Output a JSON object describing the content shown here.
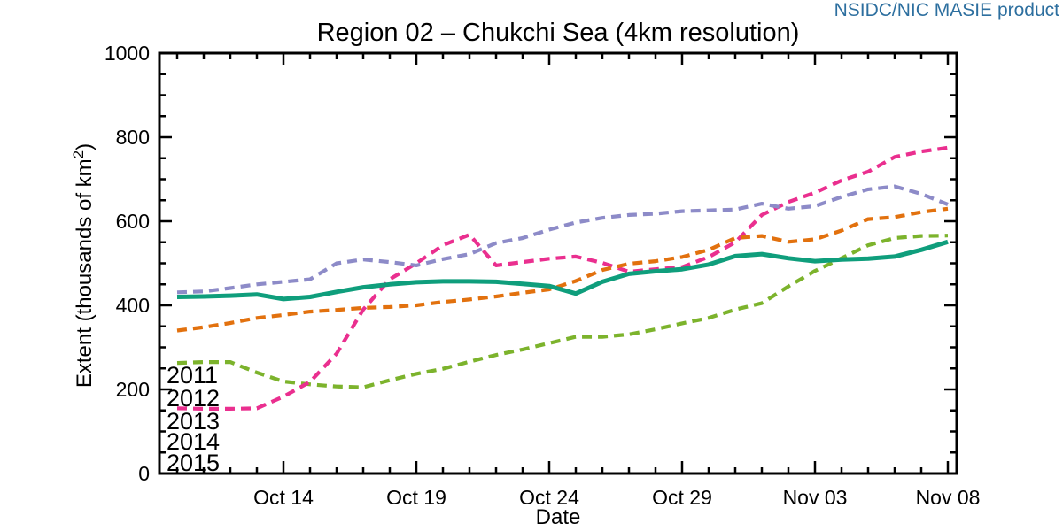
{
  "header": {
    "product_label": "NSIDC/NIC MASIE product",
    "product_label_color": "#2d6f9f"
  },
  "chart_data": {
    "type": "line",
    "title": "Region 02 – Chukchi Sea (4km resolution)",
    "xlabel": "Date",
    "ylabel": "Extent (thousands of km²)",
    "ylim": [
      0,
      1000
    ],
    "ytick_values": [
      0,
      200,
      400,
      600,
      800,
      1000
    ],
    "yminor_interval": 50,
    "grid": false,
    "legend_position": "lower-left",
    "axis_color": "#000000",
    "x_dates": [
      "Oct 10",
      "Oct 11",
      "Oct 12",
      "Oct 13",
      "Oct 14",
      "Oct 15",
      "Oct 16",
      "Oct 17",
      "Oct 18",
      "Oct 19",
      "Oct 20",
      "Oct 21",
      "Oct 22",
      "Oct 23",
      "Oct 24",
      "Oct 25",
      "Oct 26",
      "Oct 27",
      "Oct 28",
      "Oct 29",
      "Oct 30",
      "Oct 31",
      "Nov 01",
      "Nov 02",
      "Nov 03",
      "Nov 04",
      "Nov 05",
      "Nov 06",
      "Nov 07",
      "Nov 08"
    ],
    "xtick_labels": [
      "Oct 14",
      "Oct 19",
      "Oct 24",
      "Oct 29",
      "Nov 03",
      "Nov 08"
    ],
    "xtick_day_indices": [
      4,
      9,
      14,
      19,
      24,
      29
    ],
    "series": [
      {
        "name": "2011",
        "color": "#7cb32c",
        "style": "dashed",
        "values": [
          263,
          265,
          265,
          240,
          219,
          212,
          207,
          205,
          222,
          237,
          249,
          266,
          282,
          295,
          310,
          325,
          325,
          331,
          343,
          357,
          370,
          390,
          405,
          445,
          482,
          512,
          543,
          560,
          565,
          566
        ]
      },
      {
        "name": "2012",
        "color": "#ea2f8f",
        "style": "dashed",
        "values": [
          155,
          154,
          154,
          155,
          183,
          218,
          285,
          390,
          462,
          500,
          543,
          568,
          495,
          503,
          511,
          516,
          501,
          480,
          486,
          491,
          515,
          550,
          615,
          646,
          668,
          697,
          718,
          753,
          766,
          775
        ]
      },
      {
        "name": "2013",
        "color": "#8d8bc8",
        "style": "dashed",
        "values": [
          431,
          433,
          441,
          450,
          456,
          462,
          500,
          509,
          503,
          495,
          510,
          522,
          548,
          560,
          580,
          597,
          608,
          615,
          618,
          624,
          626,
          628,
          642,
          630,
          636,
          658,
          676,
          683,
          665,
          640
        ]
      },
      {
        "name": "2014",
        "color": "#e2710e",
        "style": "dashed",
        "values": [
          340,
          348,
          358,
          370,
          377,
          385,
          389,
          394,
          396,
          400,
          408,
          414,
          421,
          430,
          438,
          458,
          484,
          499,
          505,
          515,
          532,
          560,
          565,
          551,
          557,
          578,
          605,
          610,
          622,
          630
        ]
      },
      {
        "name": "2015",
        "color": "#0f9e7c",
        "style": "solid",
        "values": [
          420,
          421,
          423,
          426,
          415,
          420,
          432,
          443,
          450,
          455,
          457,
          457,
          456,
          451,
          446,
          428,
          456,
          475,
          481,
          486,
          497,
          517,
          522,
          512,
          505,
          509,
          511,
          516,
          532,
          551
        ]
      }
    ]
  }
}
